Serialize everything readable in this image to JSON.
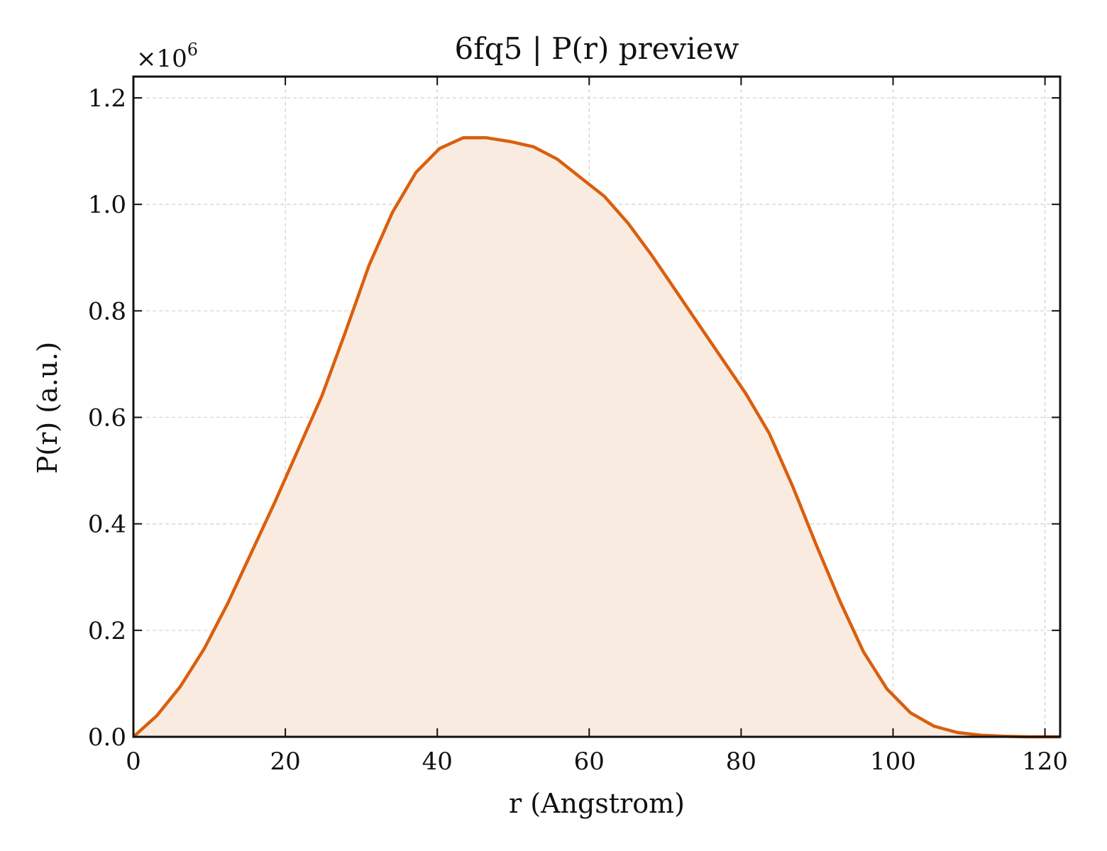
{
  "chart_data": {
    "type": "area",
    "title": "6fq5 | P(r) preview",
    "xlabel": "r (Angstrom)",
    "ylabel": "P(r) (a.u.)",
    "y_multiplier_base": "×10",
    "y_multiplier_exponent": "6",
    "xlim": [
      0,
      122
    ],
    "ylim": [
      0,
      1.24
    ],
    "x_ticks": [
      0,
      20,
      40,
      60,
      80,
      100,
      120
    ],
    "y_ticks": [
      0.0,
      0.2,
      0.4,
      0.6,
      0.8,
      1.0,
      1.2
    ],
    "x_tick_labels": [
      "0",
      "20",
      "40",
      "60",
      "80",
      "100",
      "120"
    ],
    "y_tick_labels": [
      "0.0",
      "0.2",
      "0.4",
      "0.6",
      "0.8",
      "1.0",
      "1.2"
    ],
    "grid": true,
    "line_color": "#d95f0e",
    "fill_color": "#f9ebe0",
    "series": [
      {
        "x": [
          0,
          3.1,
          6.2,
          9.3,
          12.4,
          15.5,
          18.6,
          21.7,
          24.8,
          27.9,
          31.0,
          34.1,
          37.2,
          40.3,
          43.4,
          46.5,
          49.6,
          52.7,
          55.8,
          58.9,
          62.0,
          65.1,
          68.2,
          71.3,
          74.4,
          77.5,
          80.6,
          83.7,
          86.8,
          89.9,
          93.0,
          96.1,
          99.2,
          102.3,
          105.4,
          108.5,
          111.6,
          114.7,
          117.8,
          120.9,
          122
        ],
        "y": [
          0.0,
          0.04,
          0.095,
          0.165,
          0.25,
          0.345,
          0.44,
          0.54,
          0.64,
          0.76,
          0.885,
          0.985,
          1.06,
          1.105,
          1.125,
          1.125,
          1.118,
          1.108,
          1.085,
          1.05,
          1.015,
          0.965,
          0.905,
          0.84,
          0.775,
          0.71,
          0.645,
          0.57,
          0.47,
          0.36,
          0.255,
          0.16,
          0.09,
          0.045,
          0.02,
          0.008,
          0.003,
          0.001,
          0.0,
          0.0,
          0.0
        ]
      }
    ]
  }
}
